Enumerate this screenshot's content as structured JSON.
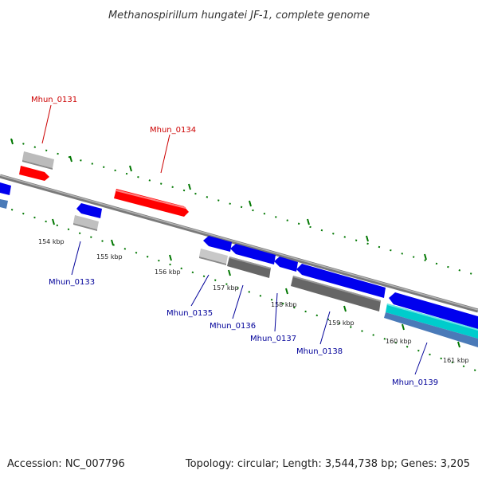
{
  "title": "Methanospirillum hungatei JF-1, complete genome",
  "footer": {
    "accession": "Accession: NC_007796",
    "summary": "Topology: circular; Length: 3,544,738 bp; Genes: 3,205"
  },
  "colors": {
    "forward_label": "#cc0000",
    "reverse_label": "#000099",
    "backbone": "#888888",
    "tick": "#007700"
  },
  "ticks": [
    "154 kbp",
    "155 kbp",
    "156 kbp",
    "157 kbp",
    "158 kbp",
    "159 kbp",
    "160 kbp",
    "161 kbp"
  ],
  "genes": {
    "forward": [
      {
        "name": "Mhun_0131",
        "color": "#ff0000"
      },
      {
        "name": "Mhun_0134",
        "color": "#ff0000"
      }
    ],
    "reverse": [
      {
        "name": "Mhun_0133",
        "color": "#0000ee"
      },
      {
        "name": "Mhun_0135",
        "color": "#0000ee"
      },
      {
        "name": "Mhun_0136",
        "color": "#0000ee"
      },
      {
        "name": "Mhun_0137",
        "color": "#0000ee"
      },
      {
        "name": "Mhun_0138",
        "color": "#0000ee"
      },
      {
        "name": "Mhun_0139",
        "color": "#0000ee"
      }
    ]
  }
}
